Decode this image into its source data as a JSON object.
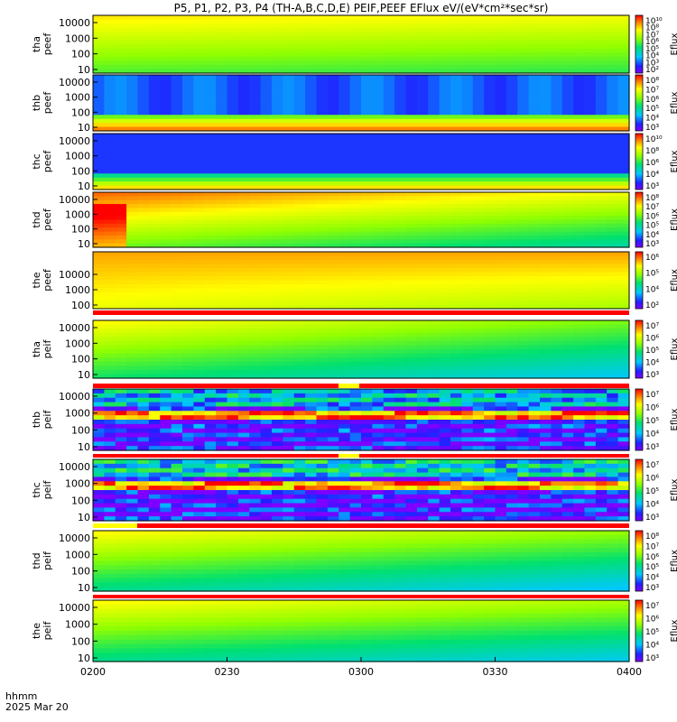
{
  "title": "P5, P1, P2, P3, P4 (TH-A,B,C,D,E) PEIF,PEEF EFlux eV/(eV*cm²*sec*sr)",
  "colors": {
    "frame": "#000000",
    "flag_red": "#ff0000",
    "flag_yellow": "#ffff00"
  },
  "chart_data": {
    "type": "heatmap",
    "x_axis": {
      "label": "hhmm",
      "date": "2025 Mar 20",
      "ticks": [
        "0200",
        "0230",
        "0300",
        "0330",
        "0400"
      ],
      "range": [
        "0200",
        "0400"
      ]
    },
    "colorbar_label": "Eflux",
    "panels": [
      {
        "ylabel": [
          "tha",
          "peef"
        ],
        "yticks": [
          "10",
          "100",
          "1000",
          "10000"
        ],
        "cbar_ticks": [
          "10²",
          "10³",
          "10⁴",
          "10⁵",
          "10⁶",
          "10⁷",
          "10⁸",
          "10¹⁰"
        ]
      },
      {
        "ylabel": [
          "thb",
          "peef"
        ],
        "yticks": [
          "10",
          "100",
          "1000",
          "10000"
        ],
        "cbar_ticks": [
          "10³",
          "10⁴",
          "10⁵",
          "10⁶",
          "10⁷",
          "10⁸"
        ]
      },
      {
        "ylabel": [
          "thc",
          "peef"
        ],
        "yticks": [
          "10",
          "100",
          "1000",
          "10000"
        ],
        "cbar_ticks": [
          "10³",
          "10⁴",
          "10⁶",
          "10⁸",
          "10¹⁰"
        ]
      },
      {
        "ylabel": [
          "thd",
          "peef"
        ],
        "yticks": [
          "10",
          "100",
          "1000",
          "10000"
        ],
        "cbar_ticks": [
          "10³",
          "10⁴",
          "10⁵",
          "10⁶",
          "10⁷",
          "10⁸"
        ]
      },
      {
        "ylabel": [
          "the",
          "peef"
        ],
        "yticks": [
          "100",
          "1000",
          "10000"
        ],
        "cbar_ticks": [
          "10²",
          "10⁴",
          "10⁵",
          "10⁶"
        ]
      },
      {
        "ylabel": [
          "tha",
          "peif"
        ],
        "yticks": [
          "10",
          "100",
          "1000",
          "10000"
        ],
        "cbar_ticks": [
          "10³",
          "10⁴",
          "10⁵",
          "10⁶",
          "10⁷"
        ]
      },
      {
        "ylabel": [
          "thb",
          "peif"
        ],
        "yticks": [
          "10",
          "100",
          "1000",
          "10000"
        ],
        "cbar_ticks": [
          "10³",
          "10⁴",
          "10⁵",
          "10⁶",
          "10⁷"
        ]
      },
      {
        "ylabel": [
          "thc",
          "peif"
        ],
        "yticks": [
          "10",
          "100",
          "1000",
          "10000"
        ],
        "cbar_ticks": [
          "10³",
          "10⁴",
          "10⁵",
          "10⁶",
          "10⁷"
        ]
      },
      {
        "ylabel": [
          "thd",
          "peif"
        ],
        "yticks": [
          "10",
          "100",
          "1000",
          "10000"
        ],
        "cbar_ticks": [
          "10³",
          "10⁴",
          "10⁵",
          "10⁶",
          "10⁷",
          "10⁸"
        ]
      },
      {
        "ylabel": [
          "the",
          "peif"
        ],
        "yticks": [
          "10",
          "100",
          "1000",
          "10000"
        ],
        "cbar_ticks": [
          "10³",
          "10⁴",
          "10⁵",
          "10⁶",
          "10⁷"
        ]
      }
    ]
  }
}
